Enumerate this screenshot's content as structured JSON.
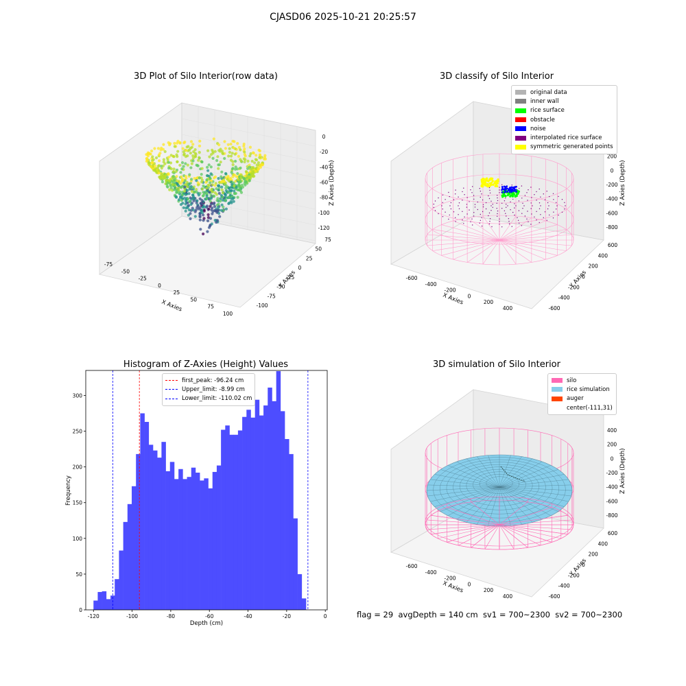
{
  "figure": {
    "suptitle": "CJASD06 2025-10-21 20:25:57",
    "footer": "flag = 29  avgDepth = 140 cm  sv1 = 700~2300  sv2 = 700~2300"
  },
  "panels": {
    "raw": {
      "title": "3D Plot of Silo Interior(row data)",
      "xlabel": "X Axies",
      "ylabel": "Y Axies",
      "zlabel": "Z Axies (Depth)",
      "xticks": [
        "-75",
        "-50",
        "-25",
        "0",
        "25",
        "50",
        "75",
        "100"
      ],
      "yticks": [
        "-100",
        "-75",
        "-50",
        "-25",
        "0",
        "25",
        "50",
        "75"
      ],
      "zticks": [
        "0",
        "-20",
        "-40",
        "-60",
        "-80",
        "-100",
        "-120"
      ]
    },
    "classify": {
      "title": "3D classify of Silo Interior",
      "xlabel": "X Axies",
      "ylabel": "Y Axies",
      "zlabel": "Z Axies (Depth)",
      "xticks": [
        "-600",
        "-400",
        "-200",
        "0",
        "200",
        "400"
      ],
      "yticks": [
        "-600",
        "-400",
        "-200",
        "0",
        "200",
        "400",
        "600"
      ],
      "zticks": [
        "400",
        "200",
        "0",
        "-200",
        "-400",
        "-600",
        "-800"
      ],
      "legend": [
        {
          "label": "original data",
          "color": "#b3b3b3"
        },
        {
          "label": "inner wall",
          "color": "#808080"
        },
        {
          "label": "rice surface",
          "color": "#00ff00"
        },
        {
          "label": "obstacle",
          "color": "#ff0000"
        },
        {
          "label": "noise",
          "color": "#0000ff"
        },
        {
          "label": "interpolated rice surface",
          "color": "#800080"
        },
        {
          "label": "symmetric generated points",
          "color": "#ffff00"
        }
      ]
    },
    "simulation": {
      "title": "3D simulation of Silo Interior",
      "xlabel": "X Axies",
      "ylabel": "Y Axies",
      "zlabel": "Z Axies (Depth)",
      "xticks": [
        "-600",
        "-400",
        "-200",
        "0",
        "200",
        "400"
      ],
      "yticks": [
        "-600",
        "-400",
        "-200",
        "0",
        "200",
        "400",
        "600"
      ],
      "zticks": [
        "400",
        "200",
        "0",
        "-200",
        "-400",
        "-600",
        "-800"
      ],
      "legend": [
        {
          "label": "silo",
          "color": "#ff69b4"
        },
        {
          "label": "rice simulation",
          "color": "#87ceeb"
        },
        {
          "label": "auger",
          "color": "#ff4500"
        },
        {
          "label": "center(-111,31)",
          "color": ""
        }
      ]
    }
  },
  "chart_data": {
    "type": "bar",
    "title": "Histogram of Z-Axies (Height) Values",
    "xlabel": "Depth (cm)",
    "ylabel": "Frequency",
    "xlim": [
      -124,
      1
    ],
    "ylim": [
      0,
      335
    ],
    "xticks": [
      -120,
      -100,
      -80,
      -60,
      -40,
      -20,
      0
    ],
    "yticks": [
      0,
      50,
      100,
      150,
      200,
      250,
      300
    ],
    "bar_color": "#4d4dff",
    "bin_start": -120,
    "bin_width": 2.2,
    "values": [
      13,
      25,
      26,
      15,
      20,
      43,
      83,
      123,
      148,
      173,
      218,
      275,
      263,
      231,
      223,
      213,
      235,
      194,
      207,
      183,
      197,
      183,
      186,
      199,
      192,
      181,
      184,
      170,
      193,
      202,
      252,
      258,
      245,
      245,
      251,
      270,
      280,
      269,
      294,
      272,
      286,
      311,
      292,
      334,
      278,
      239,
      218,
      128,
      50,
      16
    ],
    "lines": [
      {
        "label": "first_peak: -96.24 cm",
        "x": -96.24,
        "color": "#ff0000"
      },
      {
        "label": "Upper_limit: -8.99 cm",
        "x": -8.99,
        "color": "#0000ff"
      },
      {
        "label": "Lower_limit: -110.02 cm",
        "x": -110.02,
        "color": "#0000ff"
      }
    ]
  }
}
